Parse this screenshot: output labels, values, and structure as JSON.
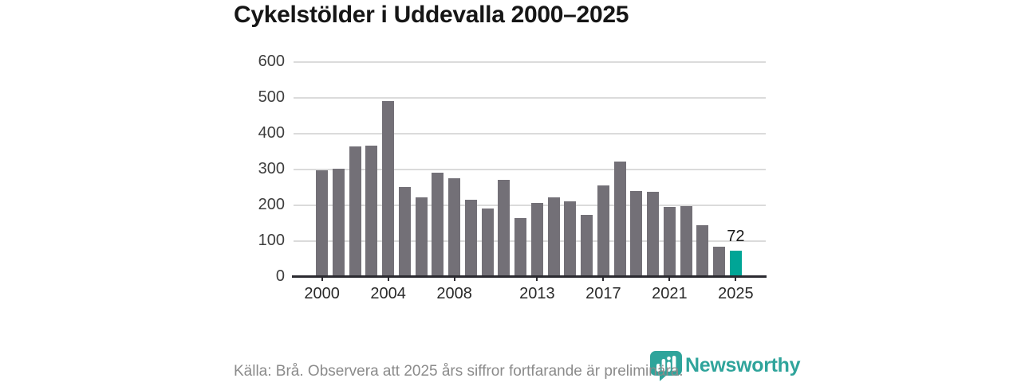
{
  "chart_data": {
    "type": "bar",
    "title": "Cykelstölder i Uddevalla 2000–2025",
    "categories": [
      "2000",
      "2001",
      "2002",
      "2003",
      "2004",
      "2005",
      "2006",
      "2007",
      "2008",
      "2009",
      "2010",
      "2011",
      "2012",
      "2013",
      "2014",
      "2015",
      "2016",
      "2017",
      "2018",
      "2019",
      "2020",
      "2021",
      "2022",
      "2023",
      "2024",
      "2025"
    ],
    "values": [
      296,
      299,
      362,
      365,
      488,
      249,
      220,
      288,
      274,
      214,
      188,
      270,
      163,
      204,
      221,
      208,
      172,
      254,
      319,
      237,
      235,
      194,
      196,
      143,
      82,
      72
    ],
    "ylim": [
      0,
      600
    ],
    "y_ticks": [
      0,
      100,
      200,
      300,
      400,
      500,
      600
    ],
    "x_tick_labels": [
      "2000",
      "2004",
      "2008",
      "2013",
      "2017",
      "2021",
      "2025"
    ],
    "grid": "horizontal",
    "legend": "none",
    "bar_color": "#737077",
    "highlight_color": "#00a596",
    "highlight_index": 25,
    "value_labels": [
      {
        "index": 25,
        "text": "72"
      }
    ]
  },
  "footer": {
    "source_note": "Källa: Brå. Observera att 2025 års siffror fortfarande är preliminära."
  },
  "brand": {
    "name": "Newsworthy",
    "logo_icon": "bar-chart-bubble-icon",
    "color": "#2fa49b"
  }
}
